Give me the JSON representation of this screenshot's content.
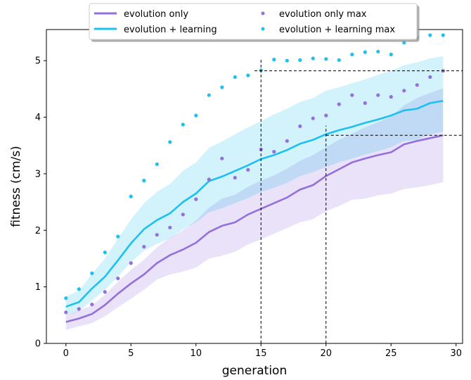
{
  "chart_data": {
    "type": "line",
    "xlabel": "generation",
    "ylabel": "fitness (cm/s)",
    "xlim": [
      -1.5,
      30.5
    ],
    "ylim": [
      0,
      5.55
    ],
    "xticks": [
      0,
      5,
      10,
      15,
      20,
      25,
      30
    ],
    "yticks": [
      0,
      1,
      2,
      3,
      4,
      5
    ],
    "legend_position": "top-center",
    "x": [
      0,
      1,
      2,
      3,
      4,
      5,
      6,
      7,
      8,
      9,
      10,
      11,
      12,
      13,
      14,
      15,
      16,
      17,
      18,
      19,
      20,
      21,
      22,
      23,
      24,
      25,
      26,
      27,
      28,
      29
    ],
    "series": [
      {
        "name": "evolution only",
        "kind": "line",
        "color": "#9370DB",
        "values": [
          0.38,
          0.44,
          0.52,
          0.68,
          0.88,
          1.06,
          1.22,
          1.42,
          1.56,
          1.66,
          1.78,
          1.97,
          2.08,
          2.14,
          2.28,
          2.38,
          2.48,
          2.58,
          2.72,
          2.8,
          2.96,
          3.08,
          3.2,
          3.27,
          3.33,
          3.38,
          3.52,
          3.58,
          3.63,
          3.68
        ],
        "band_low": [
          0.24,
          0.3,
          0.36,
          0.48,
          0.64,
          0.79,
          0.95,
          1.13,
          1.22,
          1.27,
          1.34,
          1.5,
          1.55,
          1.62,
          1.75,
          1.84,
          1.94,
          2.04,
          2.14,
          2.2,
          2.34,
          2.43,
          2.54,
          2.56,
          2.62,
          2.65,
          2.73,
          2.76,
          2.8,
          2.85
        ],
        "band_high": [
          0.5,
          0.58,
          0.67,
          0.86,
          1.09,
          1.3,
          1.48,
          1.7,
          1.87,
          2.0,
          2.17,
          2.4,
          2.56,
          2.63,
          2.77,
          2.88,
          2.97,
          3.09,
          3.23,
          3.33,
          3.47,
          3.6,
          3.71,
          3.82,
          3.91,
          4.01,
          4.21,
          4.34,
          4.43,
          4.51
        ]
      },
      {
        "name": "evolution + learning",
        "kind": "line",
        "color": "#1EC0F0",
        "values": [
          0.65,
          0.73,
          0.97,
          1.18,
          1.47,
          1.77,
          2.02,
          2.18,
          2.3,
          2.5,
          2.65,
          2.87,
          2.95,
          3.05,
          3.15,
          3.26,
          3.33,
          3.42,
          3.53,
          3.6,
          3.7,
          3.77,
          3.83,
          3.9,
          3.96,
          4.03,
          4.12,
          4.15,
          4.25,
          4.29
        ],
        "band_low": [
          0.5,
          0.57,
          0.76,
          0.95,
          1.18,
          1.44,
          1.64,
          1.76,
          1.86,
          2.02,
          2.14,
          2.32,
          2.39,
          2.48,
          2.57,
          2.68,
          2.75,
          2.84,
          2.96,
          3.03,
          3.12,
          3.2,
          3.27,
          3.34,
          3.4,
          3.47,
          3.58,
          3.6,
          3.7,
          3.74
        ],
        "band_high": [
          0.83,
          0.93,
          1.23,
          1.5,
          1.85,
          2.19,
          2.48,
          2.68,
          2.82,
          3.05,
          3.2,
          3.46,
          3.57,
          3.7,
          3.82,
          3.93,
          4.05,
          4.15,
          4.27,
          4.34,
          4.47,
          4.53,
          4.6,
          4.67,
          4.75,
          4.82,
          4.92,
          4.97,
          5.04,
          5.08
        ]
      },
      {
        "name": "evolution only max",
        "kind": "scatter",
        "color": "#9370DB",
        "values": [
          0.55,
          0.61,
          0.69,
          0.91,
          1.15,
          1.42,
          1.71,
          1.92,
          2.05,
          2.28,
          2.55,
          2.9,
          3.27,
          2.93,
          3.07,
          3.43,
          3.39,
          3.58,
          3.84,
          3.98,
          4.03,
          4.23,
          4.39,
          4.25,
          4.39,
          4.36,
          4.47,
          4.57,
          4.71,
          4.82
        ]
      },
      {
        "name": "evolution + learning max",
        "kind": "scatter",
        "color": "#1EC0F0",
        "values": [
          0.8,
          0.96,
          1.24,
          1.61,
          1.89,
          2.6,
          2.88,
          3.17,
          3.56,
          3.87,
          4.03,
          4.39,
          4.53,
          4.71,
          4.74,
          4.83,
          5.02,
          5.0,
          5.01,
          5.04,
          5.03,
          5.01,
          5.11,
          5.15,
          5.16,
          5.11,
          5.32,
          5.41,
          5.45,
          5.45
        ]
      }
    ],
    "reference_lines": [
      {
        "type": "vertical",
        "x": 15,
        "y_from": 0,
        "y_to": 5.02
      },
      {
        "type": "vertical",
        "x": 20,
        "y_from": 0,
        "y_to": 3.85
      },
      {
        "type": "horizontal",
        "y": 4.82,
        "x_from": 14.5,
        "x_to": 30.5
      },
      {
        "type": "horizontal",
        "y": 3.68,
        "x_from": 20,
        "x_to": 30.5
      }
    ]
  }
}
